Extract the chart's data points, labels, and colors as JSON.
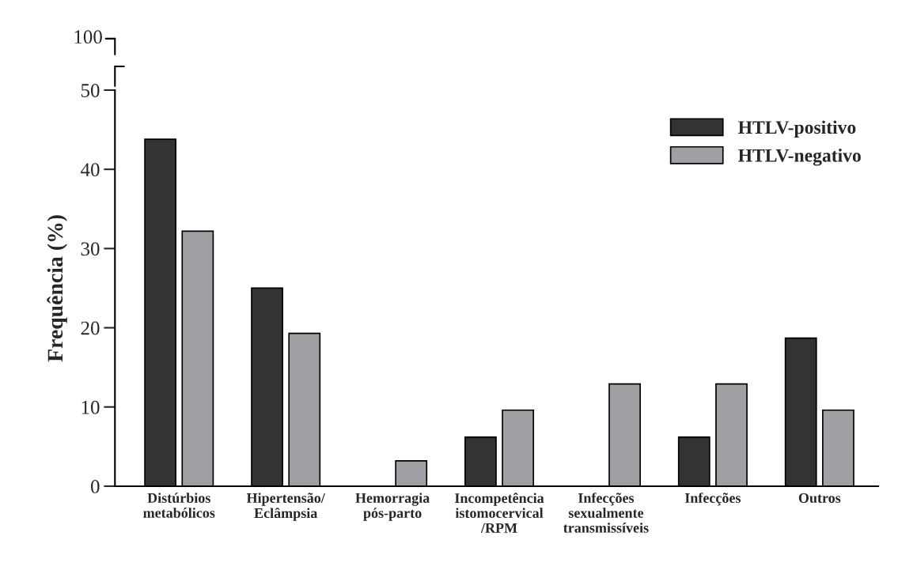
{
  "chart_data": {
    "type": "bar",
    "ylabel": "Frequência (%)",
    "categories": [
      "Distúrbios\nmetabólicos",
      "Hipertensão/\nEclâmpsia",
      "Hemorragia\npós-parto",
      "Incompetência\nistomocervical\n/RPM",
      "Infecções\nsexualmente\ntransmissíveis",
      "Infecções",
      "Outros"
    ],
    "series": [
      {
        "name": "HTLV-positivo",
        "color": "#333333",
        "values": [
          43.8,
          25.0,
          null,
          6.2,
          null,
          6.2,
          18.7
        ]
      },
      {
        "name": "HTLV-negativo",
        "color": "#a0a0a4",
        "values": [
          32.2,
          19.3,
          3.2,
          9.6,
          12.9,
          12.9,
          9.6
        ]
      }
    ],
    "ylim": [
      0,
      50
    ],
    "yticks": [
      0,
      10,
      20,
      30,
      40,
      50
    ],
    "annotations": [
      "100"
    ],
    "legend": "top right",
    "grid": false
  }
}
